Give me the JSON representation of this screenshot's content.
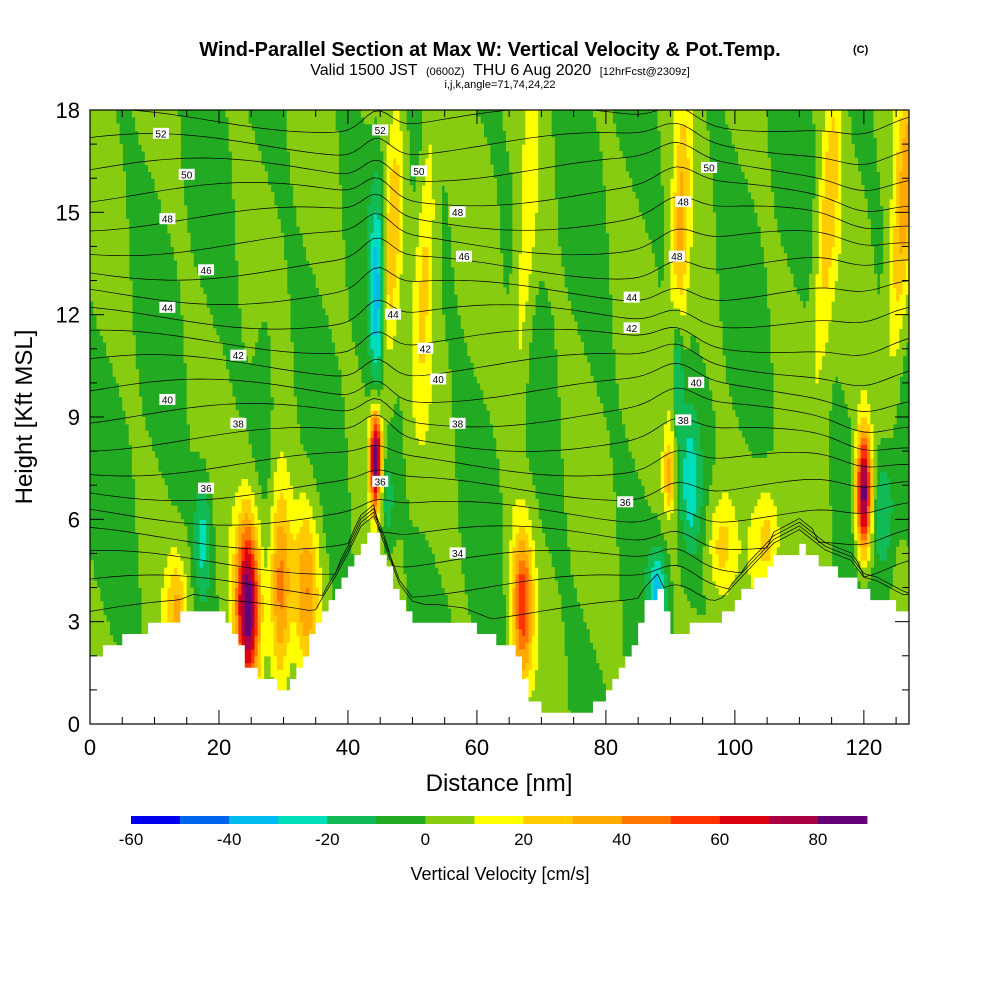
{
  "header": {
    "title_main": "Wind-Parallel Section at Max W: Vertical Velocity & Pot.Temp.",
    "title_c": "(C)",
    "subtitle_a": "Valid 1500 JST",
    "subtitle_b": "(0600Z)",
    "subtitle_c": "THU 6 Aug 2020",
    "subtitle_d": "[12hrFcst@2309z]",
    "subtitle_line2": "i,j,k,angle=71,74,24,22"
  },
  "chart_data": {
    "type": "heatmap",
    "xlabel": "Distance [nm]",
    "ylabel": "Height [Kft MSL]",
    "xlim": [
      0,
      127
    ],
    "ylim": [
      0,
      18
    ],
    "x_ticks": [
      "0",
      "20",
      "40",
      "60",
      "80",
      "100",
      "120"
    ],
    "x_tick_values": [
      0,
      20,
      40,
      60,
      80,
      100,
      120
    ],
    "y_ticks": [
      "0",
      "3",
      "6",
      "9",
      "12",
      "15",
      "18"
    ],
    "y_tick_values": [
      0,
      3,
      6,
      9,
      12,
      15,
      18
    ],
    "colorbar": {
      "label": "Vertical Velocity [cm/s]",
      "levels": [
        -60,
        -50,
        -40,
        -30,
        -20,
        -10,
        0,
        10,
        20,
        30,
        40,
        50,
        60,
        70,
        80,
        90
      ],
      "tick_labels": [
        "-60",
        "-40",
        "-20",
        "0",
        "20",
        "40",
        "60",
        "80"
      ],
      "tick_values": [
        -60,
        -40,
        -20,
        0,
        20,
        40,
        60,
        80
      ],
      "colors": [
        "#0000ee",
        "#0066ee",
        "#00bbee",
        "#00ddbb",
        "#11bb55",
        "#22aa22",
        "#88cc11",
        "#ffff00",
        "#ffcc00",
        "#ffaa00",
        "#ff7700",
        "#ff3300",
        "#dd0011",
        "#aa0044",
        "#660077"
      ]
    },
    "terrain_kft": {
      "x": [
        0,
        4,
        8,
        12,
        16,
        20,
        22,
        24,
        26,
        28,
        30,
        32,
        34,
        36,
        38,
        40,
        42,
        44,
        46,
        48,
        50,
        52,
        54,
        58,
        62,
        66,
        68,
        70,
        74,
        78,
        82,
        84,
        86,
        88,
        90,
        92,
        94,
        98,
        102,
        106,
        110,
        114,
        118,
        120,
        122,
        126,
        127
      ],
      "y": [
        2.0,
        2.4,
        2.8,
        3.0,
        3.3,
        3.2,
        2.6,
        1.8,
        1.3,
        1.2,
        1.1,
        1.6,
        2.5,
        3.2,
        3.8,
        4.5,
        5.3,
        5.6,
        4.6,
        3.6,
        3.1,
        3.0,
        3.0,
        2.9,
        2.6,
        2.0,
        0.8,
        0.4,
        0.4,
        0.5,
        1.5,
        2.4,
        3.5,
        3.9,
        2.7,
        2.8,
        2.9,
        3.2,
        4.0,
        4.8,
        5.2,
        4.6,
        4.3,
        3.8,
        3.7,
        3.3,
        3.3
      ]
    },
    "theta_contour_labels": [
      {
        "label": "52",
        "x": 11,
        "y": 17.3
      },
      {
        "label": "50",
        "x": 15,
        "y": 16.1
      },
      {
        "label": "48",
        "x": 12,
        "y": 14.8
      },
      {
        "label": "46",
        "x": 18,
        "y": 13.3
      },
      {
        "label": "44",
        "x": 12,
        "y": 12.2
      },
      {
        "label": "42",
        "x": 23,
        "y": 10.8
      },
      {
        "label": "40",
        "x": 12,
        "y": 9.5
      },
      {
        "label": "38",
        "x": 23,
        "y": 8.8
      },
      {
        "label": "36",
        "x": 18,
        "y": 6.9
      },
      {
        "label": "52",
        "x": 45,
        "y": 17.4
      },
      {
        "label": "50",
        "x": 51,
        "y": 16.2
      },
      {
        "label": "48",
        "x": 57,
        "y": 15.0
      },
      {
        "label": "46",
        "x": 58,
        "y": 13.7
      },
      {
        "label": "44",
        "x": 47,
        "y": 12.0
      },
      {
        "label": "42",
        "x": 52,
        "y": 11.0
      },
      {
        "label": "40",
        "x": 54,
        "y": 10.1
      },
      {
        "label": "38",
        "x": 57,
        "y": 8.8
      },
      {
        "label": "36",
        "x": 45,
        "y": 7.1
      },
      {
        "label": "34",
        "x": 57,
        "y": 5.0
      },
      {
        "label": "50",
        "x": 96,
        "y": 16.3
      },
      {
        "label": "48",
        "x": 92,
        "y": 15.3
      },
      {
        "label": "48",
        "x": 91,
        "y": 13.7
      },
      {
        "label": "44",
        "x": 84,
        "y": 12.5
      },
      {
        "label": "42",
        "x": 84,
        "y": 11.6
      },
      {
        "label": "40",
        "x": 94,
        "y": 10.0
      },
      {
        "label": "38",
        "x": 92,
        "y": 8.9
      },
      {
        "label": "36",
        "x": 83,
        "y": 6.5
      }
    ]
  }
}
